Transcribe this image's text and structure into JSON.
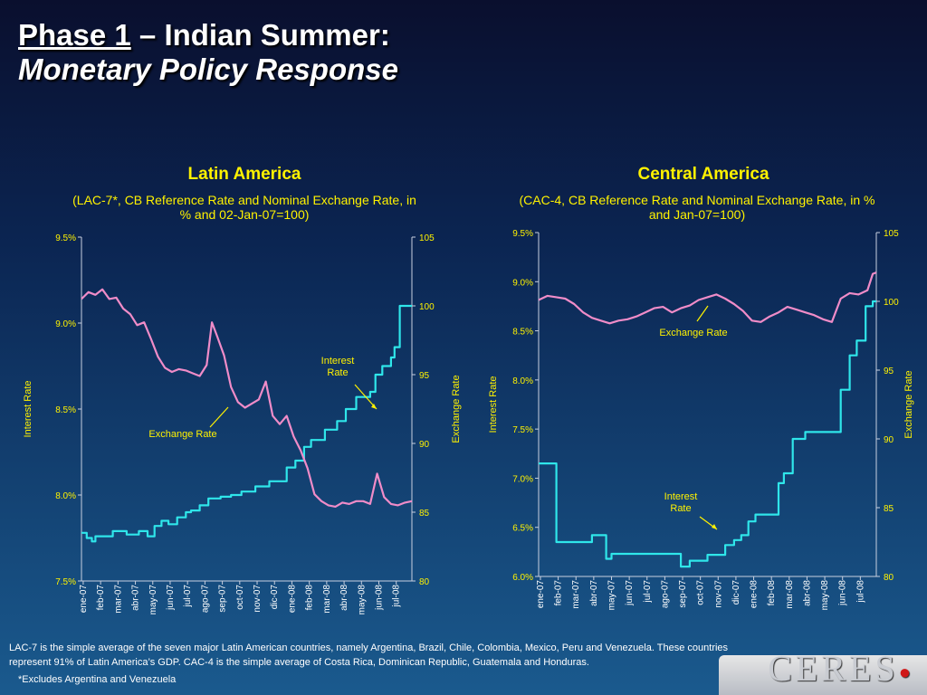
{
  "header": {
    "phase": "Phase 1",
    "rest": " – Indian Summer:",
    "subtitle": "Monetary Policy Response"
  },
  "footer": {
    "line1": "LAC-7 is the simple average of the seven major Latin American countries, namely Argentina, Brazil, Chile, Colombia, Mexico, Peru and Venezuela. These countries",
    "line2": "represent 91% of Latin America’s GDP. CAC-4 is the simple average of Costa Rica, Dominican Republic, Guatemala and Honduras.",
    "note": "*Excludes Argentina and Venezuela",
    "logo": "CERES"
  },
  "colors": {
    "interest": "#2fe6ea",
    "exchange": "#f08cc8",
    "text": "#fff200"
  },
  "chart_data": [
    {
      "type": "line",
      "title": "Latin America",
      "subtitle": "(LAC-7*, CB Reference  Rate and Nominal Exchange Rate, in % and 02-Jan-07=100)",
      "ylabel_left": "Interest Rate",
      "ylabel_right": "Exchange Rate",
      "ylim_left": [
        7.5,
        9.5
      ],
      "ylim_right": [
        80,
        105
      ],
      "yticks_left": [
        "7.5%",
        "8.0%",
        "8.5%",
        "9.0%",
        "9.5%"
      ],
      "yticks_right": [
        "80",
        "85",
        "90",
        "95",
        "100",
        "105"
      ],
      "x_labels": [
        "ene-07",
        "feb-07",
        "mar-07",
        "abr-07",
        "may-07",
        "jun-07",
        "jul-07",
        "ago-07",
        "sep-07",
        "oct-07",
        "nov-07",
        "dic-07",
        "ene-08",
        "feb-08",
        "mar-08",
        "abr-08",
        "may-08",
        "jun-08",
        "jul-08"
      ],
      "x_range": [
        0,
        19
      ],
      "annotations": {
        "interest": "Interest Rate",
        "exchange": "Exchange Rate"
      },
      "series": [
        {
          "name": "Interest Rate",
          "axis": "left",
          "x": [
            0,
            0.3,
            0.3,
            0.6,
            0.6,
            0.8,
            0.8,
            1.8,
            1.8,
            2.6,
            2.6,
            3.3,
            3.3,
            3.8,
            3.8,
            4.2,
            4.2,
            4.6,
            4.6,
            5,
            5,
            5.5,
            5.5,
            6,
            6,
            6.3,
            6.3,
            6.8,
            6.8,
            7.3,
            7.3,
            8,
            8,
            8.6,
            8.6,
            9.2,
            9.2,
            10,
            10,
            10.8,
            10.8,
            11.8,
            11.8,
            12.3,
            12.3,
            12.8,
            12.8,
            13.2,
            13.2,
            14,
            14,
            14.7,
            14.7,
            15.2,
            15.2,
            15.8,
            15.8,
            16.6,
            16.6,
            16.9,
            16.9,
            17.3,
            17.3,
            17.8,
            17.8,
            18,
            18,
            18.3,
            18.3,
            19
          ],
          "y": [
            7.78,
            7.78,
            7.75,
            7.75,
            7.73,
            7.73,
            7.76,
            7.76,
            7.79,
            7.79,
            7.77,
            7.77,
            7.79,
            7.79,
            7.76,
            7.76,
            7.82,
            7.82,
            7.85,
            7.85,
            7.83,
            7.83,
            7.87,
            7.87,
            7.9,
            7.9,
            7.91,
            7.91,
            7.94,
            7.94,
            7.98,
            7.98,
            7.99,
            7.99,
            8.0,
            8.0,
            8.02,
            8.02,
            8.05,
            8.05,
            8.08,
            8.08,
            8.16,
            8.16,
            8.2,
            8.2,
            8.28,
            8.28,
            8.32,
            8.32,
            8.38,
            8.38,
            8.43,
            8.43,
            8.5,
            8.5,
            8.57,
            8.57,
            8.6,
            8.6,
            8.7,
            8.7,
            8.75,
            8.75,
            8.8,
            8.8,
            8.86,
            8.86,
            9.1,
            9.1
          ]
        },
        {
          "name": "Exchange Rate",
          "axis": "right",
          "x": [
            0,
            0.4,
            0.8,
            1.2,
            1.6,
            2,
            2.4,
            2.8,
            3.2,
            3.6,
            4,
            4.4,
            4.8,
            5.2,
            5.6,
            6,
            6.4,
            6.8,
            7.2,
            7.5,
            7.8,
            8.2,
            8.6,
            9,
            9.4,
            9.8,
            10.2,
            10.6,
            11,
            11.4,
            11.8,
            12.2,
            12.6,
            13,
            13.4,
            13.8,
            14.2,
            14.6,
            15,
            15.4,
            15.8,
            16.2,
            16.6,
            17,
            17.4,
            17.8,
            18.2,
            18.6,
            19
          ],
          "y": [
            100.5,
            101,
            100.8,
            101.2,
            100.5,
            100.6,
            99.8,
            99.4,
            98.6,
            98.8,
            97.6,
            96.3,
            95.5,
            95.2,
            95.4,
            95.3,
            95.1,
            94.9,
            95.7,
            98.8,
            97.8,
            96.4,
            94.1,
            93,
            92.6,
            92.9,
            93.2,
            94.5,
            92,
            91.4,
            92,
            90.5,
            89.5,
            88.2,
            86.3,
            85.8,
            85.5,
            85.4,
            85.7,
            85.6,
            85.8,
            85.8,
            85.6,
            87.8,
            86.1,
            85.6,
            85.5,
            85.7,
            85.8
          ]
        }
      ]
    },
    {
      "type": "line",
      "title": "Central America",
      "subtitle": "(CAC-4, CB Reference Rate and Nominal Exchange Rate, in % and Jan-07=100)",
      "ylabel_left": "Interest Rate",
      "ylabel_right": "Exchange Rate",
      "ylim_left": [
        6.0,
        9.5
      ],
      "ylim_right": [
        80,
        105
      ],
      "yticks_left": [
        "6.0%",
        "6.5%",
        "7.0%",
        "7.5%",
        "8.0%",
        "8.5%",
        "9.0%",
        "9.5%"
      ],
      "yticks_right": [
        "80",
        "85",
        "90",
        "95",
        "100",
        "105"
      ],
      "x_labels": [
        "ene-07",
        "feb-07",
        "mar-07",
        "abr-07",
        "may-07",
        "jun-07",
        "jul-07",
        "ago-07",
        "sep-07",
        "oct-07",
        "nov-07",
        "dic-07",
        "ene-08",
        "feb-08",
        "mar-08",
        "abr-08",
        "may-08",
        "jun-08",
        "jul-08"
      ],
      "x_range": [
        0,
        19
      ],
      "annotations": {
        "interest": "Interest Rate",
        "exchange": "Exchange Rate"
      },
      "series": [
        {
          "name": "Interest Rate",
          "axis": "left",
          "x": [
            0,
            1,
            1,
            3,
            3,
            3.8,
            3.8,
            4.1,
            4.1,
            8,
            8,
            8.5,
            8.5,
            9.5,
            9.5,
            10.5,
            10.5,
            11,
            11,
            11.4,
            11.4,
            11.8,
            11.8,
            12.2,
            12.2,
            13.5,
            13.5,
            13.8,
            13.8,
            14.3,
            14.3,
            15,
            15,
            17,
            17,
            17.5,
            17.5,
            17.9,
            17.9,
            18.4,
            18.4,
            18.8,
            18.8,
            19
          ],
          "y": [
            7.15,
            7.15,
            6.35,
            6.35,
            6.42,
            6.42,
            6.18,
            6.18,
            6.23,
            6.23,
            6.1,
            6.1,
            6.16,
            6.16,
            6.22,
            6.22,
            6.32,
            6.32,
            6.37,
            6.37,
            6.42,
            6.42,
            6.56,
            6.56,
            6.63,
            6.63,
            6.95,
            6.95,
            7.05,
            7.05,
            7.4,
            7.4,
            7.47,
            7.47,
            7.9,
            7.9,
            8.25,
            8.25,
            8.4,
            8.4,
            8.75,
            8.75,
            8.8,
            8.8
          ]
        },
        {
          "name": "Exchange Rate",
          "axis": "right",
          "x": [
            0,
            0.5,
            1,
            1.5,
            2,
            2.5,
            3,
            3.5,
            4,
            4.5,
            5,
            5.5,
            6,
            6.5,
            7,
            7.5,
            8,
            8.5,
            9,
            9.5,
            10,
            10.5,
            11,
            11.5,
            12,
            12.5,
            13,
            13.5,
            14,
            14.5,
            15,
            15.5,
            16,
            16.5,
            17,
            17.5,
            18,
            18.5,
            18.8,
            19
          ],
          "y": [
            100.1,
            100.4,
            100.3,
            100.2,
            99.8,
            99.2,
            98.8,
            98.6,
            98.4,
            98.6,
            98.7,
            98.9,
            99.2,
            99.5,
            99.6,
            99.2,
            99.5,
            99.7,
            100.1,
            100.3,
            100.5,
            100.2,
            99.8,
            99.3,
            98.6,
            98.5,
            98.9,
            99.2,
            99.6,
            99.4,
            99.2,
            99.0,
            98.7,
            98.5,
            100.2,
            100.6,
            100.5,
            100.8,
            102,
            102.1
          ]
        }
      ]
    }
  ]
}
